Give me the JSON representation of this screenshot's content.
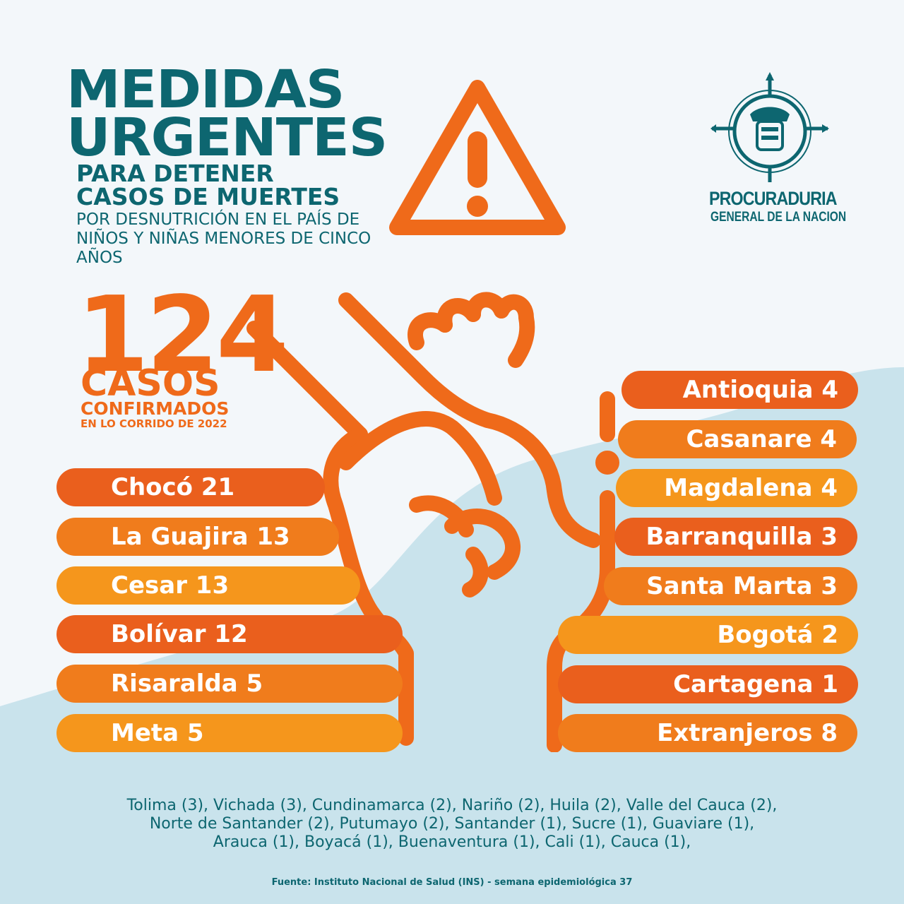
{
  "title": {
    "line1": "MEDIDAS",
    "line2": "URGENTES",
    "line3": "PARA DETENER",
    "line4": "CASOS DE MUERTES",
    "subtitle": "POR DESNUTRICIÓN EN EL PAÍS DE NIÑOS Y NIÑAS MENORES DE CINCO AÑOS"
  },
  "counter": {
    "number": "124",
    "label": "CASOS",
    "sublabel": "CONFIRMADOS",
    "period": "EN LO CORRIDO DE 2022"
  },
  "logo": {
    "line1": "PROCURADURIA",
    "line2": "GENERAL DE LA NACION",
    "icon": "procuraduria-emblem-icon"
  },
  "left_items": [
    {
      "label": "Chocó 21",
      "color": "#ea5f1d"
    },
    {
      "label": "La Guajira 13",
      "color": "#f07c1c"
    },
    {
      "label": "Cesar 13",
      "color": "#f5961c"
    },
    {
      "label": "Bolívar 12",
      "color": "#ea5f1d"
    },
    {
      "label": "Risaralda 5",
      "color": "#f07c1c"
    },
    {
      "label": "Meta 5",
      "color": "#f5961c"
    }
  ],
  "right_items": [
    {
      "label": "Antioquia 4",
      "color": "#ea5f1d"
    },
    {
      "label": "Casanare 4",
      "color": "#f07c1c"
    },
    {
      "label": "Magdalena 4",
      "color": "#f5961c"
    },
    {
      "label": "Barranquilla 3",
      "color": "#ea5f1d"
    },
    {
      "label": "Santa Marta 3",
      "color": "#f07c1c"
    },
    {
      "label": "Bogotá 2",
      "color": "#f5961c"
    },
    {
      "label": "Cartagena 1",
      "color": "#ea5f1d"
    },
    {
      "label": "Extranjeros 8",
      "color": "#f07c1c"
    }
  ],
  "others": {
    "line1": "Tolima (3), Vichada (3), Cundinamarca (2), Nariño (2), Huila (2), Valle del Cauca (2),",
    "line2": "Norte de Santander (2), Putumayo (2), Santander (1), Sucre (1), Guaviare (1),",
    "line3": "Arauca (1), Boyacá (1), Buenaventura (1), Cali (1), Cauca (1),"
  },
  "source": "Fuente: Instituto Nacional de Salud (INS) - semana epidemiológica 37",
  "colors": {
    "teal": "#0d6670",
    "orange": "#ef6a1a",
    "background": "#f4f8fb",
    "wave": "#c9e3ec"
  }
}
